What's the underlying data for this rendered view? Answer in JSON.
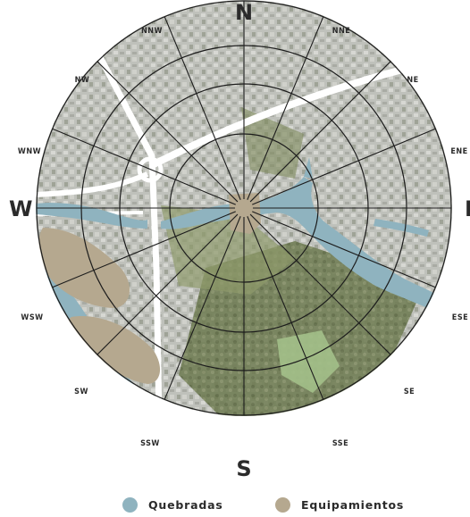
{
  "compass": {
    "cardinals": {
      "N": "N",
      "S": "S",
      "W": "W",
      "E": "E"
    },
    "intercardinals": {
      "NNE": "NNE",
      "NE": "NE",
      "ENE": "ENE",
      "ESE": "ESE",
      "SE": "SE",
      "SSE": "SSE",
      "SSW": "SSW",
      "SW": "SW",
      "WSW": "WSW",
      "WNW": "WNW",
      "NW": "NW",
      "NNW": "NNW"
    }
  },
  "legend": {
    "items": [
      {
        "label": "Quebradas",
        "color": "#8fb3bf"
      },
      {
        "label": "Equipamientos",
        "color": "#b5a88f"
      }
    ]
  },
  "colors": {
    "stream": "#8fb3bf",
    "equipment": "#b5a88f",
    "urban": "#b9bbb5",
    "vegetation": "#6f7a52",
    "roads": "#ffffff",
    "gridlines": "#1c1c1c"
  }
}
